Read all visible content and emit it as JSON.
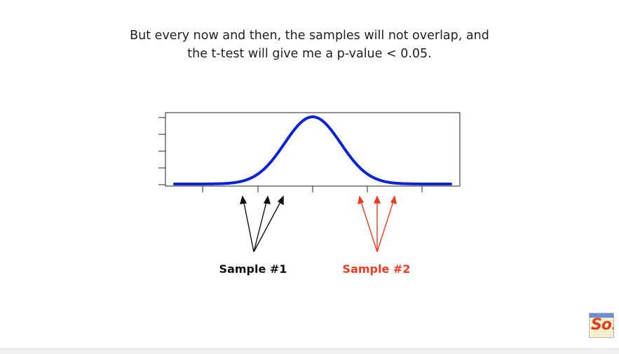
{
  "caption": {
    "line1": "But every now and then, the samples will not overlap, and",
    "line2": "the t-test will give me a p-value < 0.05."
  },
  "samples": [
    {
      "label": "Sample #1",
      "color": "#111111"
    },
    {
      "label": "Sample #2",
      "color": "#ee3b24"
    }
  ],
  "colors": {
    "curve": "#0a23d8",
    "axis": "#222222",
    "text": "#1f1f1f"
  },
  "logo": {
    "text": "So!"
  }
}
